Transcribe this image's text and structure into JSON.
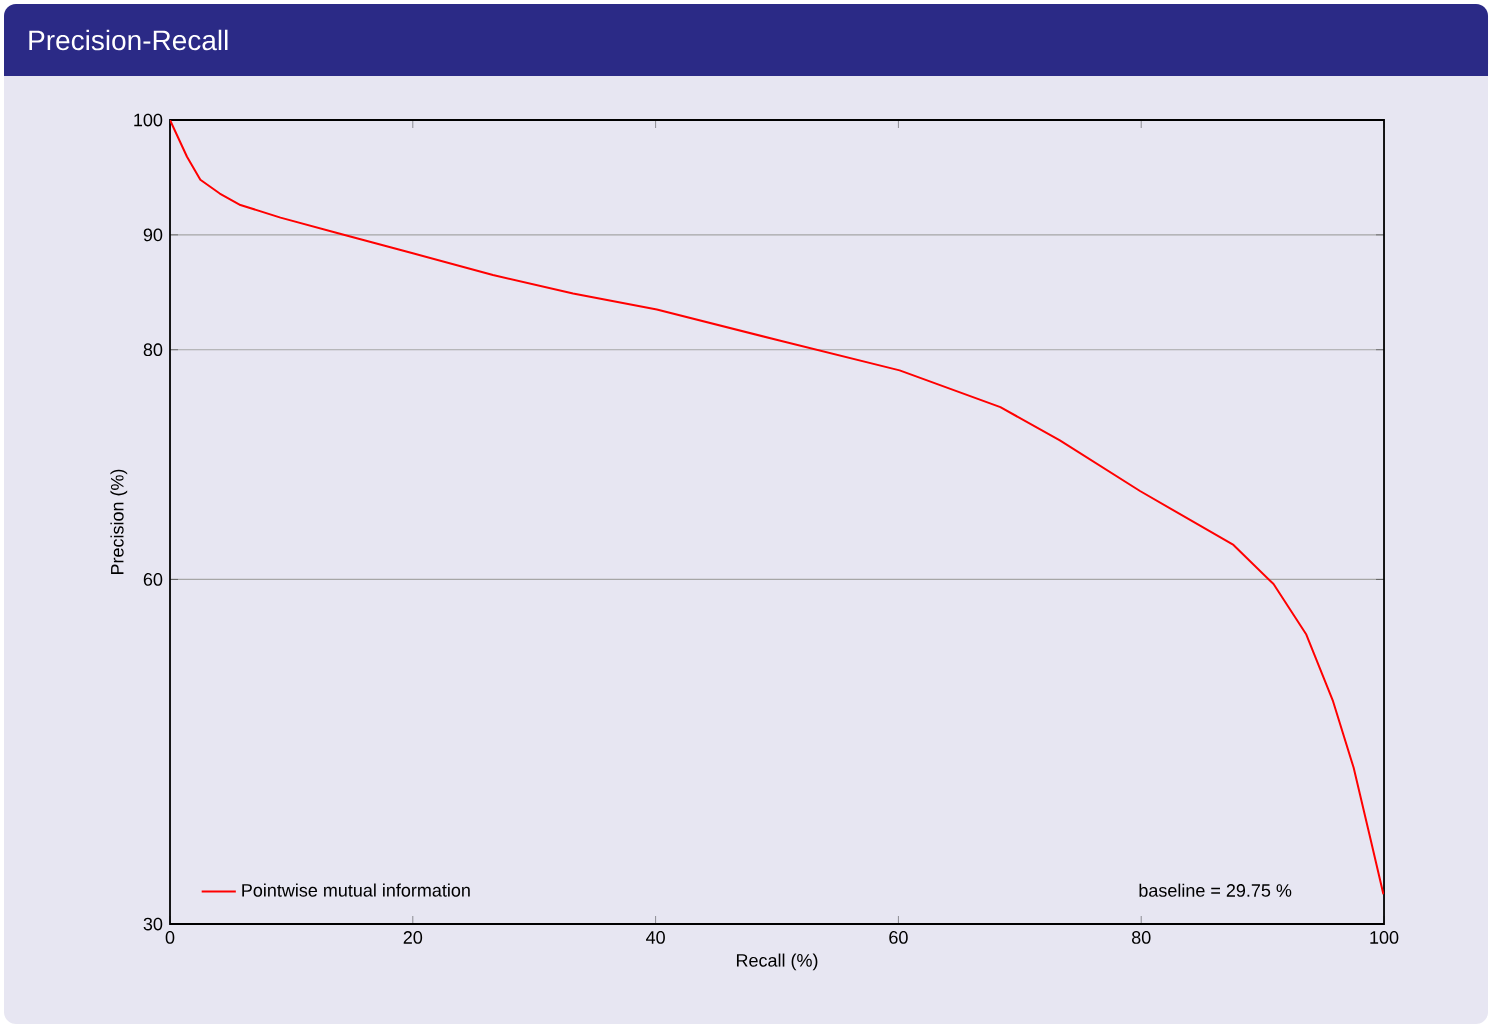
{
  "chart_data": {
    "type": "line",
    "title": "Precision-Recall",
    "xlabel": "Recall (%)",
    "ylabel": "Precision (%)",
    "x": [
      0,
      1.4,
      2.5,
      4.1,
      5.8,
      9.1,
      14,
      20,
      26.6,
      33.2,
      40.1,
      50.2,
      60.1,
      68.4,
      73.3,
      79.9,
      87.6,
      90.9,
      93.6,
      95.8,
      97.5,
      98.8,
      99.95
    ],
    "series": [
      {
        "name": "Pointwise mutual information",
        "color": "#ff0000",
        "values": [
          100,
          96.8,
          94.8,
          93.6,
          92.6,
          91.5,
          90.1,
          88.4,
          86.5,
          84.9,
          83.5,
          80.8,
          78.2,
          75.0,
          72.1,
          67.7,
          63.0,
          59.6,
          55.2,
          49.4,
          43.6,
          37.8,
          32.6
        ]
      }
    ],
    "xlim": [
      0,
      100
    ],
    "ylim": [
      30,
      100
    ],
    "xticks": [
      0,
      20,
      40,
      60,
      80,
      100
    ],
    "yticks": [
      30,
      60,
      80,
      90,
      100
    ],
    "grid": "y",
    "legend": "bottom left",
    "annotations": [
      "baseline = 29.75 %"
    ]
  }
}
